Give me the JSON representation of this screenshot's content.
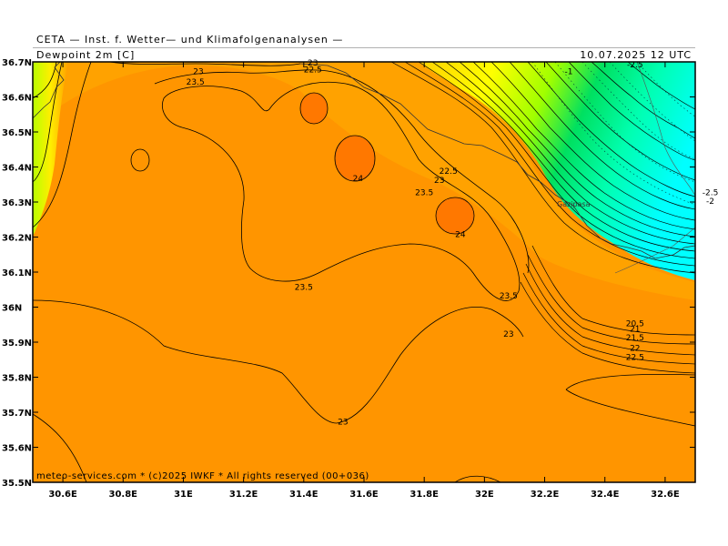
{
  "header": {
    "org": "CETA — Inst. f. Wetter— und Klimafolgenanalysen —",
    "variable": "Dewpoint 2m [C]",
    "datetime": "10.07.2025 12 UTC"
  },
  "footer": {
    "credit": "meteo-services.com * (c)2025 IWKF * All rights reserved (00+036)"
  },
  "axes": {
    "lat_labels": [
      "36.7N",
      "36.6N",
      "36.5N",
      "36.4N",
      "36.3N",
      "36.2N",
      "36.1N",
      "36N",
      "35.9N",
      "35.8N",
      "35.7N",
      "35.6N",
      "35.5N"
    ],
    "lon_labels": [
      "30.6E",
      "30.8E",
      "31E",
      "31.2E",
      "31.4E",
      "31.6E",
      "31.8E",
      "32E",
      "32.2E",
      "32.4E",
      "32.6E"
    ]
  },
  "place_labels": [
    "Gazipasa"
  ],
  "contour_labels": [
    {
      "text": "23",
      "lon": 31.05,
      "lat": 36.665
    },
    {
      "text": "23.5",
      "lon": 31.04,
      "lat": 36.635
    },
    {
      "text": "22.5",
      "lon": 31.43,
      "lat": 36.67
    },
    {
      "text": "23",
      "lon": 31.43,
      "lat": 36.69
    },
    {
      "text": "24",
      "lon": 31.58,
      "lat": 36.36
    },
    {
      "text": "22.5",
      "lon": 31.88,
      "lat": 36.38
    },
    {
      "text": "23",
      "lon": 31.85,
      "lat": 36.355
    },
    {
      "text": "23.5",
      "lon": 31.8,
      "lat": 36.32
    },
    {
      "text": "24",
      "lon": 31.92,
      "lat": 36.2
    },
    {
      "text": "23.5",
      "lon": 31.4,
      "lat": 36.05
    },
    {
      "text": "23.5",
      "lon": 32.08,
      "lat": 36.025
    },
    {
      "text": "23",
      "lon": 32.08,
      "lat": 35.915
    },
    {
      "text": "20.5",
      "lon": 32.5,
      "lat": 35.945
    },
    {
      "text": "21",
      "lon": 32.5,
      "lat": 35.93
    },
    {
      "text": "21.5",
      "lon": 32.5,
      "lat": 35.905
    },
    {
      "text": "22",
      "lon": 32.5,
      "lat": 35.875
    },
    {
      "text": "22.5",
      "lon": 32.5,
      "lat": 35.85
    },
    {
      "text": "23",
      "lon": 31.53,
      "lat": 35.665
    },
    {
      "text": "-1",
      "lon": 32.28,
      "lat": 36.665
    },
    {
      "text": "-2.5",
      "lon": 32.5,
      "lat": 36.685
    },
    {
      "text": "-2.5",
      "lon": 32.75,
      "lat": 36.32
    },
    {
      "text": "-2",
      "lon": 32.75,
      "lat": 36.295
    }
  ],
  "colors": {
    "field_main": "#ff9500",
    "field_warm": "#ff7a00",
    "field_cool": "#ffb400",
    "yellow": "#ffff00",
    "green": "#00e060",
    "cyan": "#00ffff",
    "contour": "#000000"
  }
}
